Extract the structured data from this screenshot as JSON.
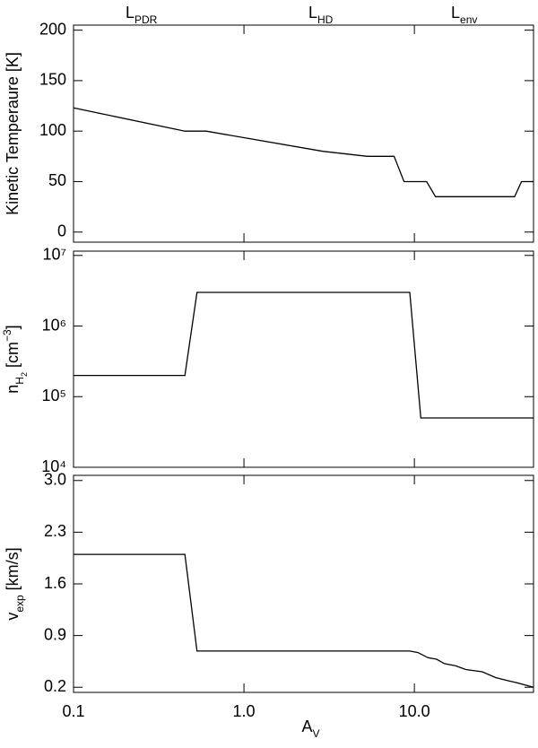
{
  "chart_data": [
    {
      "type": "line",
      "ylabel": "Kinetic Temperaure [K]",
      "annotations": [
        {
          "main": "L",
          "sub": "PDR"
        },
        {
          "main": "L",
          "sub": "HD"
        },
        {
          "main": "L",
          "sub": "env"
        }
      ],
      "x": [
        0.1,
        0.45,
        0.6,
        2.9,
        5.3,
        7.6,
        8.7,
        11.8,
        13.3,
        38.7,
        42.5,
        50
      ],
      "values": [
        123,
        100,
        100,
        80,
        75,
        75,
        50,
        50,
        35,
        35,
        50,
        50
      ],
      "color": "#000000",
      "log_x": true,
      "xlim": [
        0.1,
        50
      ],
      "xticks": [
        0.1,
        1,
        10
      ],
      "ylim": [
        -10,
        205
      ],
      "yticks": [
        0,
        50,
        100,
        150,
        200
      ]
    },
    {
      "type": "line",
      "ylabel_parts": [
        "n",
        "H",
        "2",
        " [cm",
        "−3",
        "]"
      ],
      "x": [
        0.1,
        0.45,
        0.53,
        9.4,
        10.9,
        50
      ],
      "values": [
        200000,
        200000,
        3000000,
        3000000,
        50000,
        50000
      ],
      "color": "#000000",
      "log_x": true,
      "log_y": true,
      "xlim": [
        0.1,
        50
      ],
      "xticks": [
        0.1,
        1,
        10
      ],
      "ylim": [
        10000,
        11500000
      ],
      "yticks": [
        {
          "value": 10000,
          "label": "10⁴"
        },
        {
          "value": 100000,
          "label": "10⁵"
        },
        {
          "value": 1000000,
          "label": "10⁶"
        },
        {
          "value": 10000000,
          "label": "10⁷"
        }
      ]
    },
    {
      "type": "line",
      "ylabel_parts": [
        "v",
        "exp",
        " [km/s]"
      ],
      "xlabel_parts": [
        "A",
        "V"
      ],
      "x": [
        0.1,
        0.45,
        0.53,
        9.4,
        10.5,
        12,
        13.5,
        15,
        17.5,
        20,
        25,
        30,
        35,
        40,
        50
      ],
      "values": [
        2.0,
        2.0,
        0.69,
        0.69,
        0.67,
        0.6,
        0.58,
        0.52,
        0.49,
        0.44,
        0.41,
        0.33,
        0.29,
        0.26,
        0.2
      ],
      "color": "#000000",
      "log_x": true,
      "xlim": [
        0.1,
        50
      ],
      "xticks": [
        {
          "value": 0.1,
          "label": "0.1"
        },
        {
          "value": 1,
          "label": "1.0"
        },
        {
          "value": 10,
          "label": "10.0"
        }
      ],
      "ylim": [
        0.13,
        3.07
      ],
      "yticks": [
        0.2,
        0.9,
        1.6,
        2.3,
        {
          "value": 3,
          "label": "3.0"
        }
      ]
    }
  ]
}
